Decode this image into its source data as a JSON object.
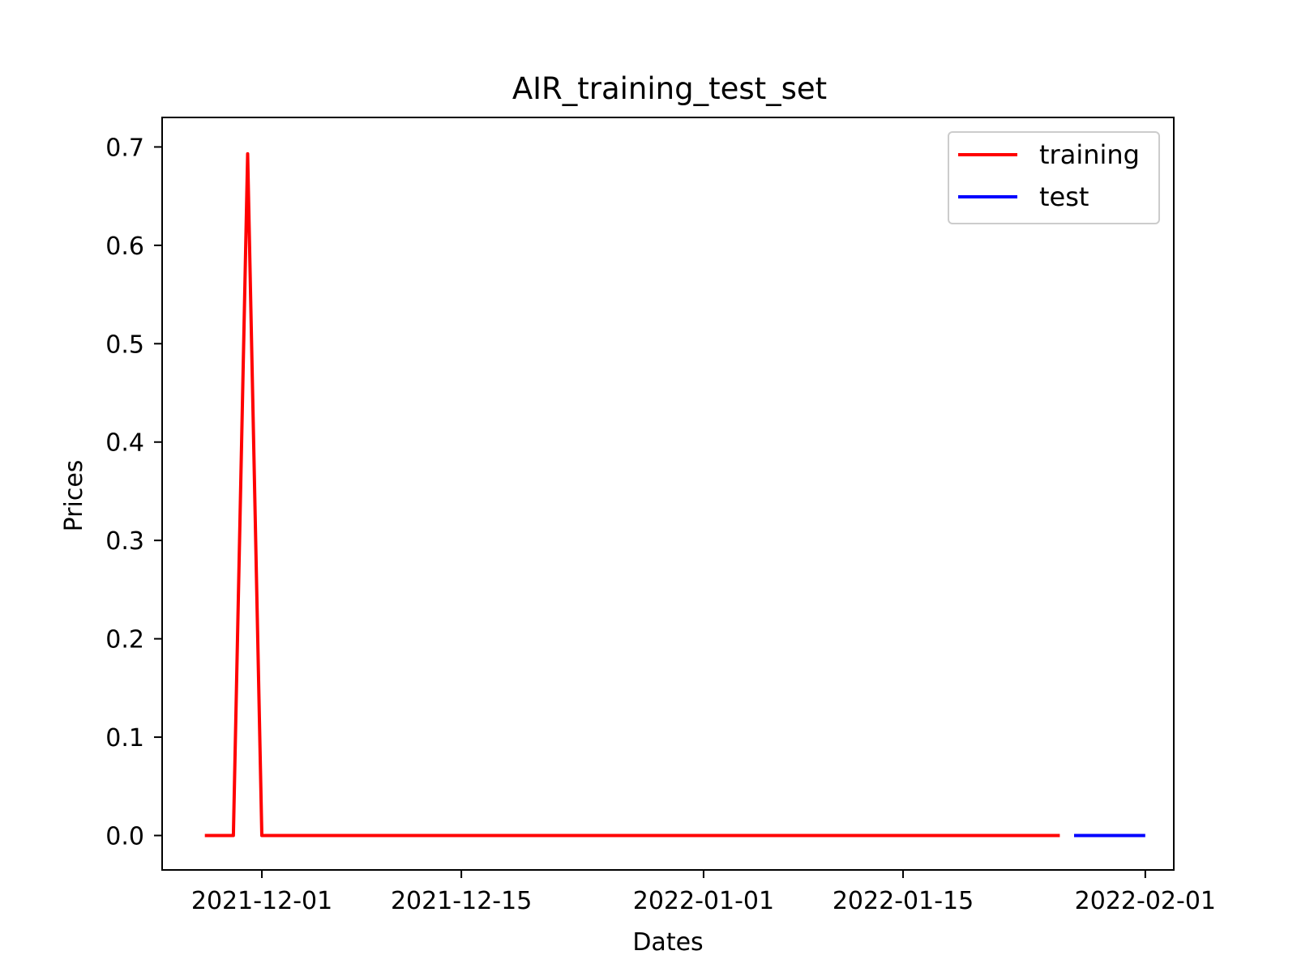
{
  "chart_data": {
    "type": "line",
    "title": "AIR_training_test_set",
    "xlabel": "Dates",
    "ylabel": "Prices",
    "x_ticks": [
      "2021-12-01",
      "2021-12-15",
      "2022-01-01",
      "2022-01-15",
      "2022-02-01"
    ],
    "y_ticks": [
      "0.0",
      "0.1",
      "0.2",
      "0.3",
      "0.4",
      "0.5",
      "0.6",
      "0.7"
    ],
    "xlim": [
      "2021-11-24",
      "2022-02-03"
    ],
    "ylim": [
      -0.035,
      0.73
    ],
    "grid": false,
    "legend_position": "top-right",
    "series": [
      {
        "name": "training",
        "color": "#ff0000",
        "x": [
          "2021-11-27",
          "2021-11-29",
          "2021-11-30",
          "2021-12-01",
          "2022-01-26"
        ],
        "y": [
          0.0,
          0.0,
          0.693,
          0.0,
          0.0
        ]
      },
      {
        "name": "test",
        "color": "#0000ff",
        "x": [
          "2022-01-27",
          "2022-02-01"
        ],
        "y": [
          0.0,
          0.0
        ]
      }
    ]
  }
}
